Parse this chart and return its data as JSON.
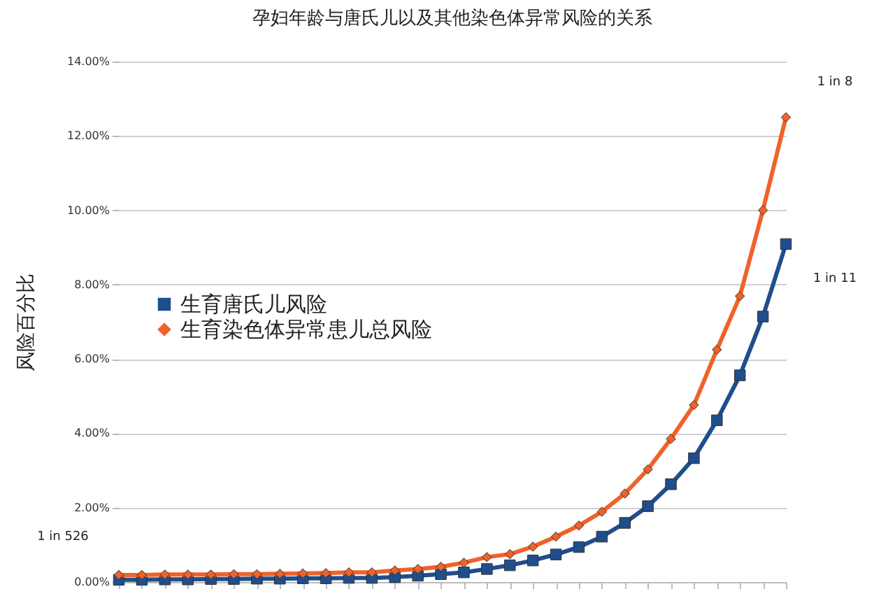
{
  "chart_data": {
    "type": "line",
    "title": "孕妇年龄与唐氏儿以及其他染色体异常风险的关系",
    "ylabel": "风险百分比",
    "categories": [
      null,
      null,
      null,
      null,
      null,
      null,
      null,
      null,
      null,
      null,
      null,
      null,
      null,
      null,
      null,
      null,
      null,
      null,
      null,
      null,
      null,
      null,
      null,
      null,
      null,
      null,
      null,
      null,
      null,
      null
    ],
    "series": [
      {
        "name": "生育唐氏儿风险",
        "color": "#1f4e8c",
        "marker": "square",
        "values": [
          0.06,
          0.06,
          0.07,
          0.07,
          0.08,
          0.08,
          0.09,
          0.09,
          0.1,
          0.1,
          0.11,
          0.11,
          0.13,
          0.17,
          0.21,
          0.26,
          0.35,
          0.45,
          0.58,
          0.74,
          0.94,
          1.22,
          1.59,
          2.04,
          2.63,
          3.33,
          4.35,
          5.56,
          7.14,
          9.09
        ]
      },
      {
        "name": "生育染色体异常患儿总风险",
        "color": "#f0622a",
        "marker": "diamond",
        "values": [
          0.19,
          0.19,
          0.2,
          0.2,
          0.2,
          0.21,
          0.21,
          0.22,
          0.23,
          0.24,
          0.26,
          0.26,
          0.31,
          0.35,
          0.41,
          0.52,
          0.67,
          0.75,
          0.95,
          1.22,
          1.52,
          1.89,
          2.38,
          3.03,
          3.85,
          4.76,
          6.25,
          7.69,
          10.0,
          12.5
        ]
      }
    ],
    "ylim": [
      0,
      14
    ],
    "yticks": [
      {
        "value": 0,
        "label": "0.00%"
      },
      {
        "value": 2,
        "label": "2.00%"
      },
      {
        "value": 4,
        "label": "4.00%"
      },
      {
        "value": 6,
        "label": "6.00%"
      },
      {
        "value": 8,
        "label": "8.00%"
      },
      {
        "value": 10,
        "label": "10.00%"
      },
      {
        "value": 12,
        "label": "12.00%"
      },
      {
        "value": 14,
        "label": "14.00%"
      }
    ],
    "annotations": [
      "1 in 526",
      "1 in 8",
      "1 in 11"
    ],
    "grid": "y",
    "legend": "left",
    "line_style": "solid"
  }
}
